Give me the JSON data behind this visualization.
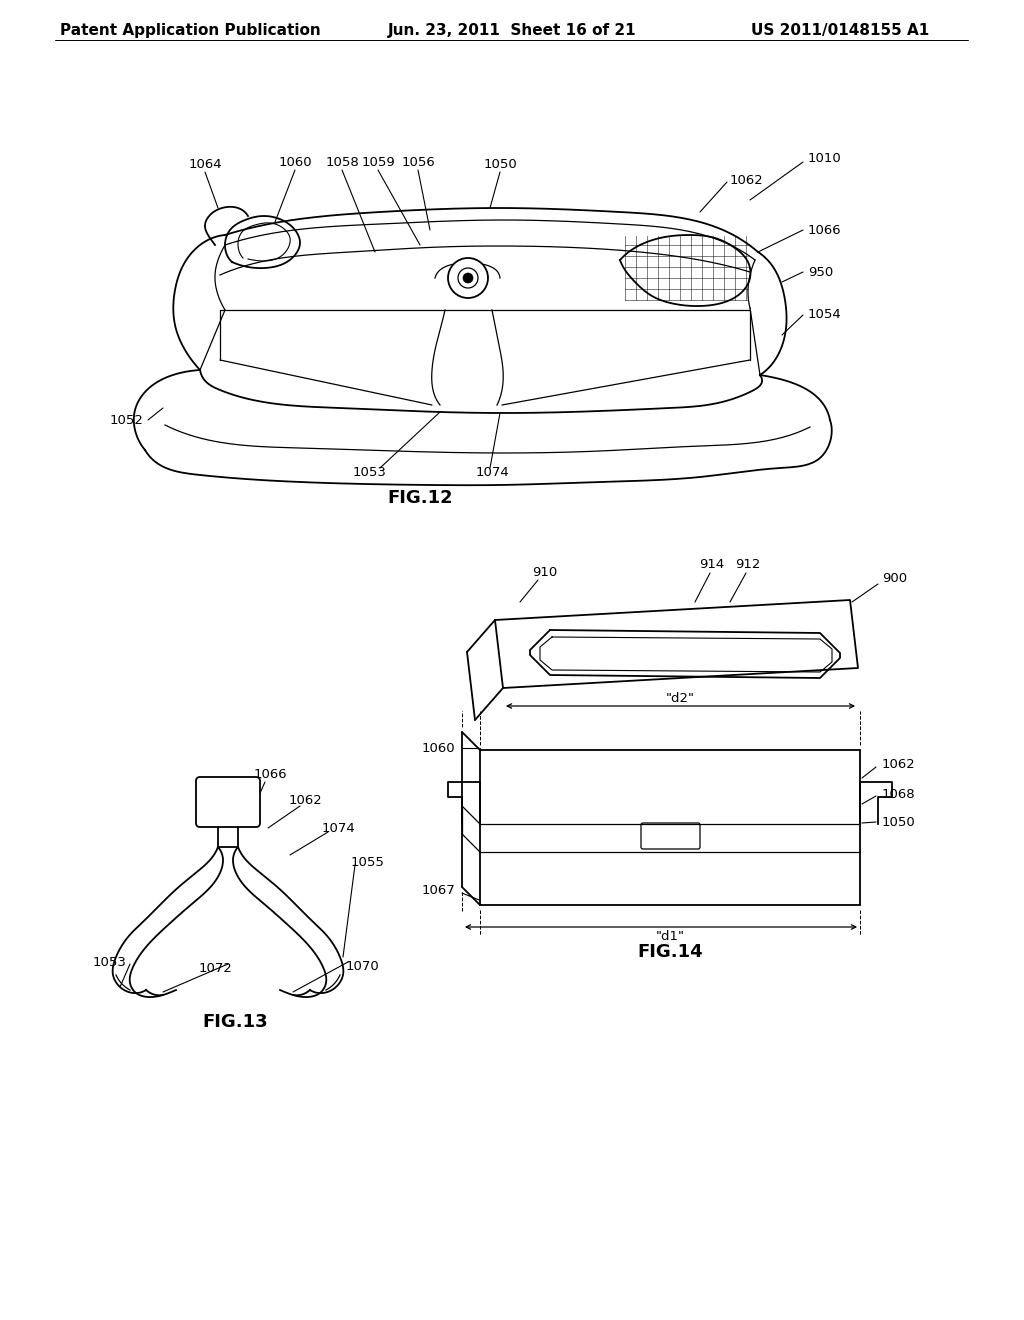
{
  "page_bg": "#ffffff",
  "header_left": "Patent Application Publication",
  "header_mid": "Jun. 23, 2011  Sheet 16 of 21",
  "header_right": "US 2011/0148155 A1",
  "line_color": "#000000",
  "line_width": 1.3,
  "label_fontsize": 9.5,
  "fig_label_fontsize": 13
}
